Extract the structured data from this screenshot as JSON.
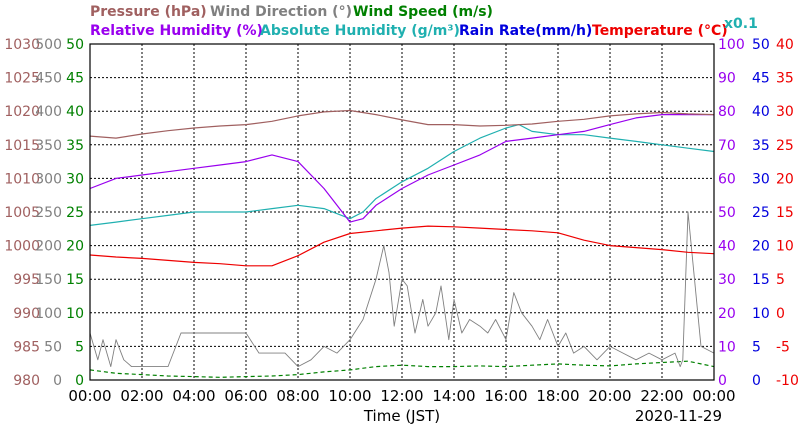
{
  "chart_data": {
    "type": "line",
    "xlabel": "Time (JST)",
    "date": "2020-11-29",
    "x_ticks": [
      "00:00",
      "02:00",
      "04:00",
      "06:00",
      "08:00",
      "10:00",
      "12:00",
      "14:00",
      "16:00",
      "18:00",
      "20:00",
      "22:00",
      "00:00"
    ],
    "x_range_hours": [
      0,
      24
    ],
    "grid": true,
    "legend": [
      {
        "label": "Pressure (hPa)",
        "color": "#a06060"
      },
      {
        "label": "Wind Direction (°)",
        "color": "#808080"
      },
      {
        "label": "Wind Speed (m/s)",
        "color": "#008000"
      },
      {
        "label": "Relative Humidity (%)",
        "color": "#9900ee"
      },
      {
        "label": "Absolute Humidity (g/m³)",
        "color": "#20b0b0"
      },
      {
        "label": "Rain Rate(mm/h)",
        "color": "#0000dd"
      },
      {
        "label": "Temperature (°C)",
        "color": "#ee0000"
      }
    ],
    "abs_humidity_scale_note": "x0.1",
    "axes": [
      {
        "id": "pressure",
        "side": "left",
        "color": "#a06060",
        "range": [
          980,
          1030
        ],
        "ticks": [
          "980",
          "985",
          "990",
          "995",
          "1000",
          "1005",
          "1010",
          "1015",
          "1020",
          "1025",
          "1030"
        ]
      },
      {
        "id": "wind_direction",
        "side": "left",
        "color": "#808080",
        "range": [
          0,
          500
        ],
        "ticks": [
          "0",
          "50",
          "100",
          "150",
          "200",
          "250",
          "300",
          "350",
          "400",
          "450",
          "500"
        ]
      },
      {
        "id": "wind_speed",
        "side": "left",
        "color": "#008000",
        "range": [
          0,
          50
        ],
        "ticks": [
          "0",
          "5",
          "10",
          "15",
          "20",
          "25",
          "30",
          "35",
          "40",
          "45",
          "50"
        ]
      },
      {
        "id": "humidity",
        "side": "right",
        "color": "#9900ee",
        "range": [
          0,
          100
        ],
        "ticks": [
          "0",
          "10",
          "20",
          "30",
          "40",
          "50",
          "60",
          "70",
          "80",
          "90",
          "100"
        ]
      },
      {
        "id": "rain_rate",
        "side": "right",
        "color": "#0000dd",
        "range": [
          0,
          50
        ],
        "ticks": [
          "0",
          "5",
          "10",
          "15",
          "20",
          "25",
          "30",
          "35",
          "40",
          "45",
          "50"
        ]
      },
      {
        "id": "temperature",
        "side": "right",
        "color": "#ee0000",
        "range": [
          -10,
          40
        ],
        "ticks": [
          "-10",
          "-5",
          "0",
          "5",
          "10",
          "15",
          "20",
          "25",
          "30",
          "35",
          "40"
        ]
      }
    ],
    "series": [
      {
        "name": "Pressure (hPa)",
        "axis": "pressure",
        "color": "#a06060",
        "x": [
          0,
          1,
          2,
          3,
          4,
          5,
          6,
          7,
          8,
          9,
          10,
          11,
          12,
          13,
          14,
          15,
          16,
          17,
          18,
          19,
          20,
          21,
          22,
          23,
          24
        ],
        "y": [
          1016.3,
          1016.0,
          1016.6,
          1017.1,
          1017.5,
          1017.8,
          1018.0,
          1018.5,
          1019.3,
          1019.9,
          1020.1,
          1019.5,
          1018.7,
          1018.0,
          1018.0,
          1017.8,
          1017.9,
          1018.1,
          1018.5,
          1018.8,
          1019.3,
          1019.6,
          1019.8,
          1019.6,
          1019.5
        ]
      },
      {
        "name": "Relative Humidity (%)",
        "axis": "humidity",
        "color": "#9900ee",
        "x": [
          0,
          1,
          2,
          3,
          4,
          5,
          6,
          7,
          8,
          9,
          9.5,
          10,
          10.5,
          11,
          12,
          13,
          14,
          15,
          16,
          17,
          18,
          19,
          20,
          21,
          22,
          23,
          24
        ],
        "y": [
          57,
          60,
          61,
          62,
          63,
          64,
          65,
          67,
          65,
          57,
          52,
          47,
          48,
          52,
          57,
          61,
          64,
          67,
          71,
          72,
          73,
          74,
          76,
          78,
          79,
          79,
          79
        ]
      },
      {
        "name": "Absolute Humidity (g/m³)",
        "axis": "humidity",
        "color": "#20b0b0",
        "x": [
          0,
          1,
          2,
          3,
          4,
          5,
          6,
          7,
          8,
          9,
          10,
          10.5,
          11,
          12,
          13,
          14,
          15,
          16,
          16.5,
          17,
          18,
          19,
          20,
          21,
          22,
          23,
          24
        ],
        "y": [
          46,
          47,
          48,
          49,
          50,
          50,
          50,
          51,
          52,
          51,
          48,
          50,
          54,
          59,
          63,
          68,
          72,
          75,
          76,
          74,
          73,
          73,
          72,
          71,
          70,
          69,
          68
        ]
      },
      {
        "name": "Temperature (°C)",
        "axis": "temperature",
        "color": "#ee0000",
        "x": [
          0,
          1,
          2,
          3,
          4,
          5,
          6,
          7,
          8,
          9,
          10,
          11,
          12,
          13,
          14,
          15,
          16,
          17,
          18,
          19,
          20,
          21,
          22,
          23,
          24
        ],
        "y": [
          8.6,
          8.3,
          8.1,
          7.8,
          7.5,
          7.3,
          7.0,
          7.0,
          8.5,
          10.5,
          11.8,
          12.2,
          12.6,
          12.9,
          12.8,
          12.6,
          12.4,
          12.2,
          11.9,
          10.8,
          10.0,
          9.7,
          9.4,
          9.0,
          8.8
        ]
      },
      {
        "name": "Wind Direction (°)",
        "axis": "wind_direction",
        "color": "#808080",
        "x": [
          0,
          0.3,
          0.5,
          0.8,
          1.0,
          1.3,
          1.6,
          2.0,
          2.5,
          3.0,
          3.5,
          4.0,
          4.3,
          4.6,
          5.0,
          5.5,
          6.0,
          6.5,
          7.0,
          7.5,
          8.0,
          8.5,
          9.0,
          9.5,
          10.0,
          10.5,
          11.0,
          11.3,
          11.5,
          11.7,
          12.0,
          12.2,
          12.5,
          12.8,
          13.0,
          13.3,
          13.5,
          13.8,
          14.0,
          14.3,
          14.6,
          15.0,
          15.3,
          15.6,
          16.0,
          16.3,
          16.6,
          17.0,
          17.3,
          17.6,
          18.0,
          18.3,
          18.6,
          19.0,
          19.5,
          20.0,
          20.5,
          21.0,
          21.5,
          22.0,
          22.5,
          22.7,
          22.8,
          23.0,
          23.5,
          24.0
        ],
        "y": [
          70,
          30,
          60,
          20,
          60,
          30,
          20,
          20,
          20,
          20,
          70,
          70,
          70,
          70,
          70,
          70,
          70,
          40,
          40,
          40,
          20,
          30,
          50,
          40,
          60,
          90,
          150,
          200,
          160,
          80,
          150,
          140,
          70,
          120,
          80,
          100,
          140,
          60,
          120,
          70,
          90,
          80,
          70,
          90,
          60,
          130,
          100,
          80,
          60,
          90,
          50,
          70,
          40,
          50,
          30,
          50,
          40,
          30,
          40,
          30,
          40,
          20,
          30,
          250,
          50,
          40
        ]
      },
      {
        "name": "Wind Speed (m/s)",
        "axis": "wind_speed",
        "color": "#008000",
        "x": [
          0,
          1,
          2,
          3,
          4,
          5,
          6,
          7,
          8,
          9,
          10,
          11,
          12,
          13,
          14,
          15,
          16,
          17,
          18,
          19,
          20,
          21,
          22,
          23,
          24
        ],
        "y": [
          1.5,
          1.0,
          0.8,
          0.6,
          0.5,
          0.4,
          0.5,
          0.6,
          0.8,
          1.2,
          1.5,
          2.0,
          2.2,
          2.0,
          2.0,
          2.1,
          2.0,
          2.2,
          2.4,
          2.2,
          2.1,
          2.4,
          2.6,
          2.8,
          2.0
        ]
      }
    ]
  }
}
